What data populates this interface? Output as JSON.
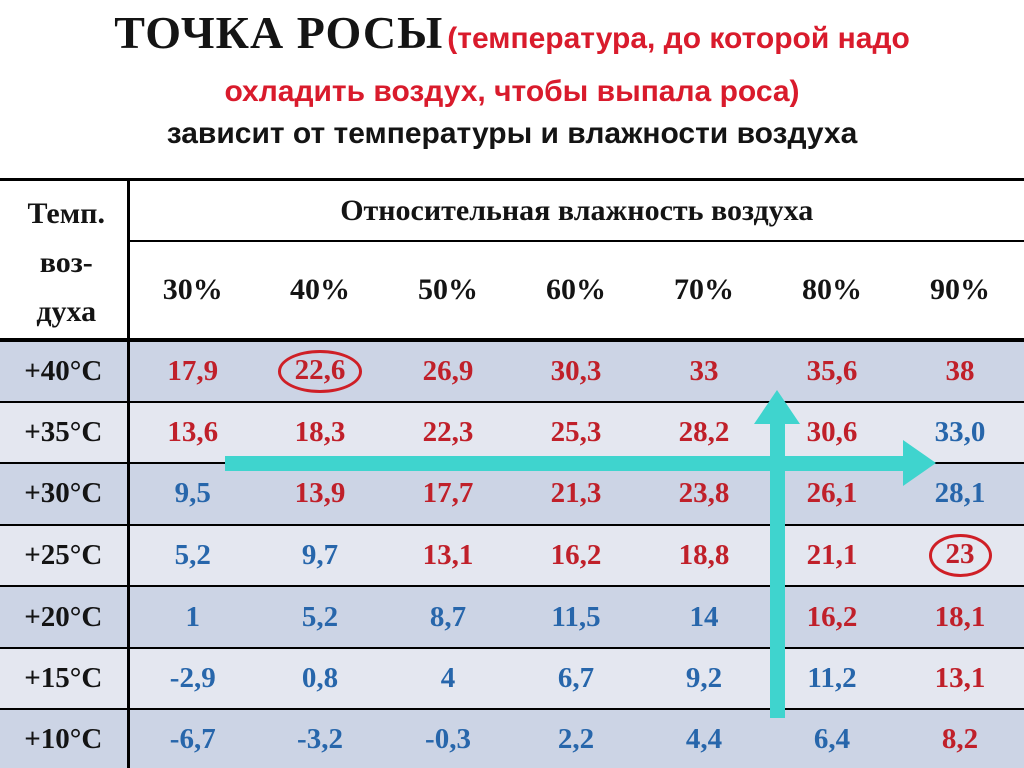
{
  "title": {
    "main": "ТОЧКА РОСЫ",
    "red_line1": "(температура, до которой надо",
    "red_line2": "охладить воздух, чтобы выпала роса)",
    "subtitle": "зависит от температуры и влажности воздуха"
  },
  "table": {
    "corner_lines": [
      "Темп.",
      "воз-",
      "духа"
    ],
    "humidity_title": "Относительная влажность воздуха",
    "humidity_levels": [
      "30%",
      "40%",
      "50%",
      "60%",
      "70%",
      "80%",
      "90%"
    ],
    "rows": [
      {
        "temp": "+40°C",
        "values": [
          {
            "v": "17,9",
            "color": "red"
          },
          {
            "v": "22,6",
            "color": "red",
            "circled": true
          },
          {
            "v": "26,9",
            "color": "red"
          },
          {
            "v": "30,3",
            "color": "red"
          },
          {
            "v": "33",
            "color": "red"
          },
          {
            "v": "35,6",
            "color": "red"
          },
          {
            "v": "38",
            "color": "red"
          }
        ]
      },
      {
        "temp": "+35°C",
        "values": [
          {
            "v": "13,6",
            "color": "red"
          },
          {
            "v": "18,3",
            "color": "red"
          },
          {
            "v": "22,3",
            "color": "red"
          },
          {
            "v": "25,3",
            "color": "red"
          },
          {
            "v": "28,2",
            "color": "red"
          },
          {
            "v": "30,6",
            "color": "red"
          },
          {
            "v": "33,0",
            "color": "blue"
          }
        ]
      },
      {
        "temp": "+30°C",
        "values": [
          {
            "v": "9,5",
            "color": "blue"
          },
          {
            "v": "13,9",
            "color": "red"
          },
          {
            "v": "17,7",
            "color": "red"
          },
          {
            "v": "21,3",
            "color": "red"
          },
          {
            "v": "23,8",
            "color": "red"
          },
          {
            "v": "26,1",
            "color": "red"
          },
          {
            "v": "28,1",
            "color": "blue"
          }
        ]
      },
      {
        "temp": "+25°C",
        "values": [
          {
            "v": "5,2",
            "color": "blue"
          },
          {
            "v": "9,7",
            "color": "blue"
          },
          {
            "v": "13,1",
            "color": "red"
          },
          {
            "v": "16,2",
            "color": "red"
          },
          {
            "v": "18,8",
            "color": "red"
          },
          {
            "v": "21,1",
            "color": "red"
          },
          {
            "v": "23",
            "color": "red",
            "circled": true
          }
        ]
      },
      {
        "temp": "+20°C",
        "values": [
          {
            "v": "1",
            "color": "blue"
          },
          {
            "v": "5,2",
            "color": "blue"
          },
          {
            "v": "8,7",
            "color": "blue"
          },
          {
            "v": "11,5",
            "color": "blue"
          },
          {
            "v": "14",
            "color": "blue"
          },
          {
            "v": "16,2",
            "color": "red"
          },
          {
            "v": "18,1",
            "color": "red"
          }
        ]
      },
      {
        "temp": "+15°C",
        "values": [
          {
            "v": "-2,9",
            "color": "blue"
          },
          {
            "v": "0,8",
            "color": "blue"
          },
          {
            "v": "4",
            "color": "blue"
          },
          {
            "v": "6,7",
            "color": "blue"
          },
          {
            "v": "9,2",
            "color": "blue"
          },
          {
            "v": "11,2",
            "color": "blue"
          },
          {
            "v": "13,1",
            "color": "red"
          }
        ]
      },
      {
        "temp": "+10°C",
        "values": [
          {
            "v": "-6,7",
            "color": "blue"
          },
          {
            "v": "-3,2",
            "color": "blue"
          },
          {
            "v": "-0,3",
            "color": "blue"
          },
          {
            "v": "2,2",
            "color": "blue"
          },
          {
            "v": "4,4",
            "color": "blue"
          },
          {
            "v": "6,4",
            "color": "blue"
          },
          {
            "v": "8,2",
            "color": "red"
          }
        ]
      }
    ]
  },
  "chart_data": {
    "type": "table",
    "title": "ТОЧКА РОСЫ зависит от температуры и влажности воздуха",
    "row_axis_label": "Темп. воздуха",
    "column_axis_label": "Относительная влажность воздуха",
    "columns": [
      "30%",
      "40%",
      "50%",
      "60%",
      "70%",
      "80%",
      "90%"
    ],
    "row_labels": [
      "+40°C",
      "+35°C",
      "+30°C",
      "+25°C",
      "+20°C",
      "+15°C",
      "+10°C"
    ],
    "values": [
      [
        17.9,
        22.6,
        26.9,
        30.3,
        33,
        35.6,
        38
      ],
      [
        13.6,
        18.3,
        22.3,
        25.3,
        28.2,
        30.6,
        33.0
      ],
      [
        9.5,
        13.9,
        17.7,
        21.3,
        23.8,
        26.1,
        28.1
      ],
      [
        5.2,
        9.7,
        13.1,
        16.2,
        18.8,
        21.1,
        23
      ],
      [
        1,
        5.2,
        8.7,
        11.5,
        14,
        16.2,
        18.1
      ],
      [
        -2.9,
        0.8,
        4,
        6.7,
        9.2,
        11.2,
        13.1
      ],
      [
        -6.7,
        -3.2,
        -0.3,
        2.2,
        4.4,
        6.4,
        8.2
      ]
    ],
    "annotations": {
      "circled_values": [
        "22,6 (+40°C / 40%)",
        "23 (+25°C / 90%)"
      ],
      "horizontal_arrow": "turquoise arrow pointing right along the +35°C row toward 90%",
      "vertical_arrow": "turquoise arrow pointing up the 80% column"
    }
  },
  "colors": {
    "title_red": "#d91b2c",
    "value_red": "#c0202a",
    "value_blue": "#2766ab",
    "circle_red": "#cf1f26",
    "arrow_turquoise": "#3fd4ce",
    "row_dark": "#ccd4e5",
    "row_light": "#e4e7f0"
  }
}
